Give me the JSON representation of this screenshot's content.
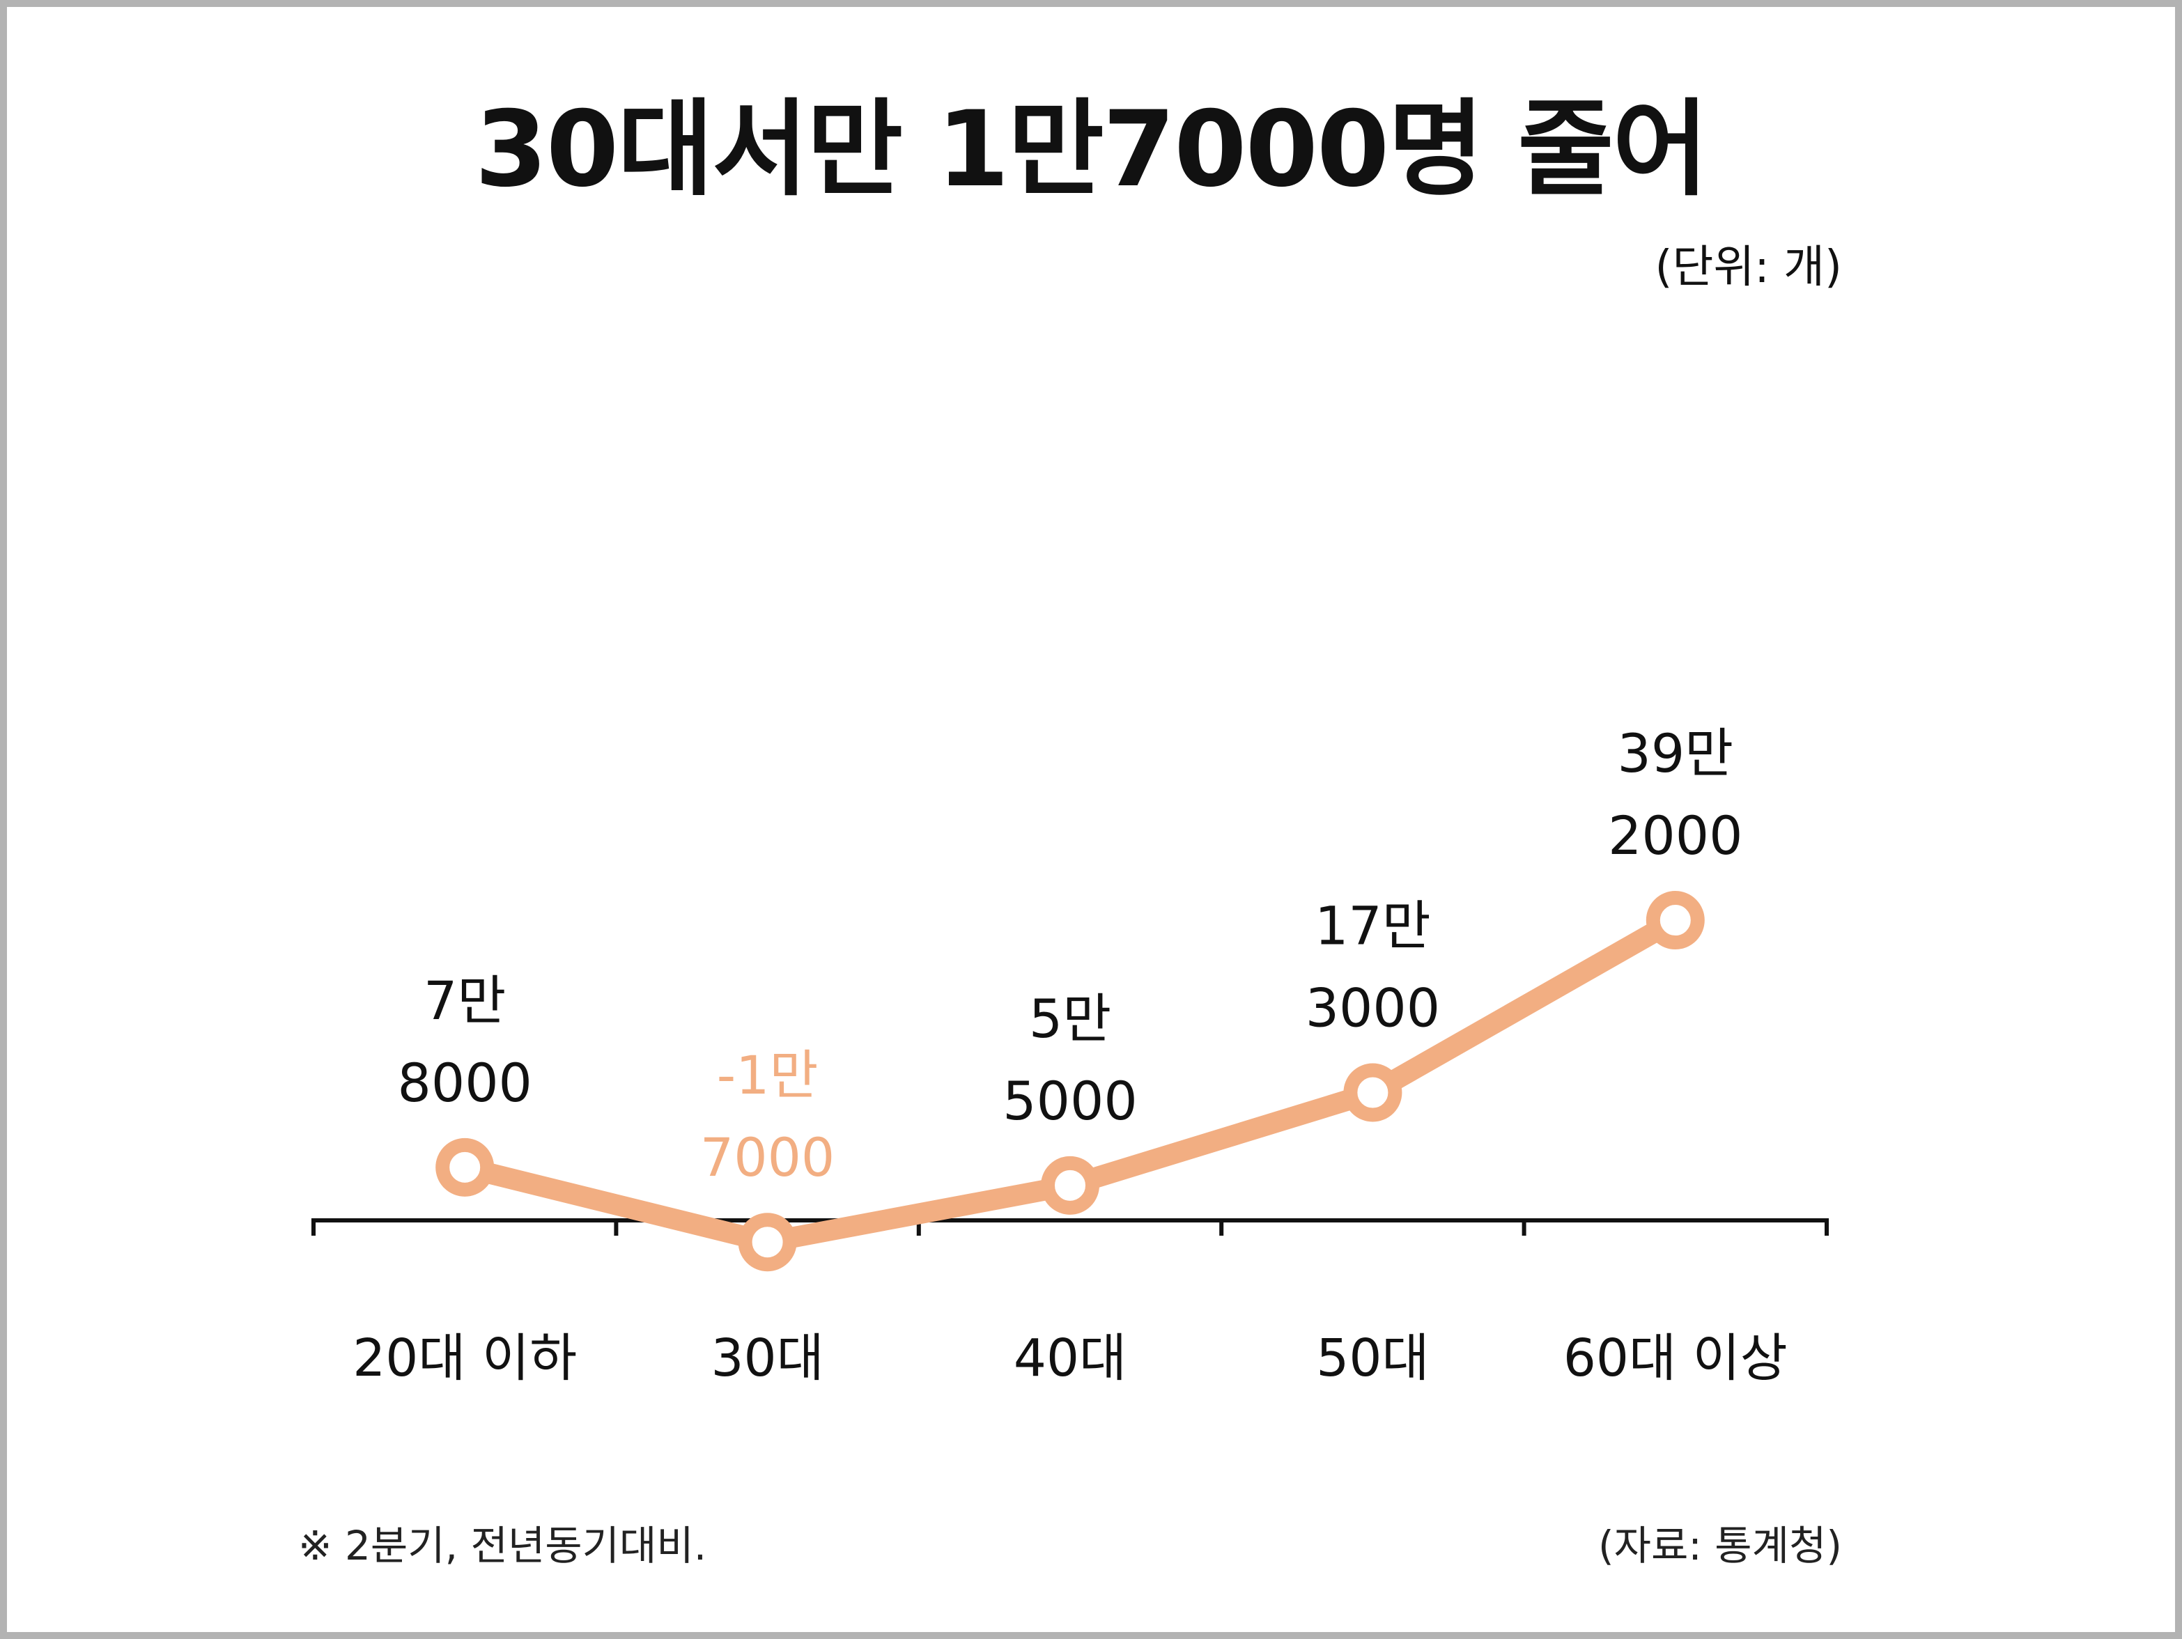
{
  "chart_data": {
    "type": "line",
    "title": "30대서만 1만7000명 줄어",
    "unit_label": "(단위: 개)",
    "categories": [
      "20대 이하",
      "30대",
      "40대",
      "50대",
      "60대 이상"
    ],
    "values": [
      78000,
      -17000,
      55000,
      173000,
      392000
    ],
    "data_labels": [
      [
        "7만",
        "8000"
      ],
      [
        "-1만",
        "7000"
      ],
      [
        "5만",
        "5000"
      ],
      [
        "17만",
        "3000"
      ],
      [
        "39만",
        "2000"
      ]
    ],
    "line_color": "#f2ae82",
    "negative_label_color": "#f2ae82",
    "label_color": "#111111",
    "grid": false,
    "legend": "none"
  },
  "footnote": "※ 2분기, 전년동기대비.",
  "source": "(자료: 통계청)"
}
